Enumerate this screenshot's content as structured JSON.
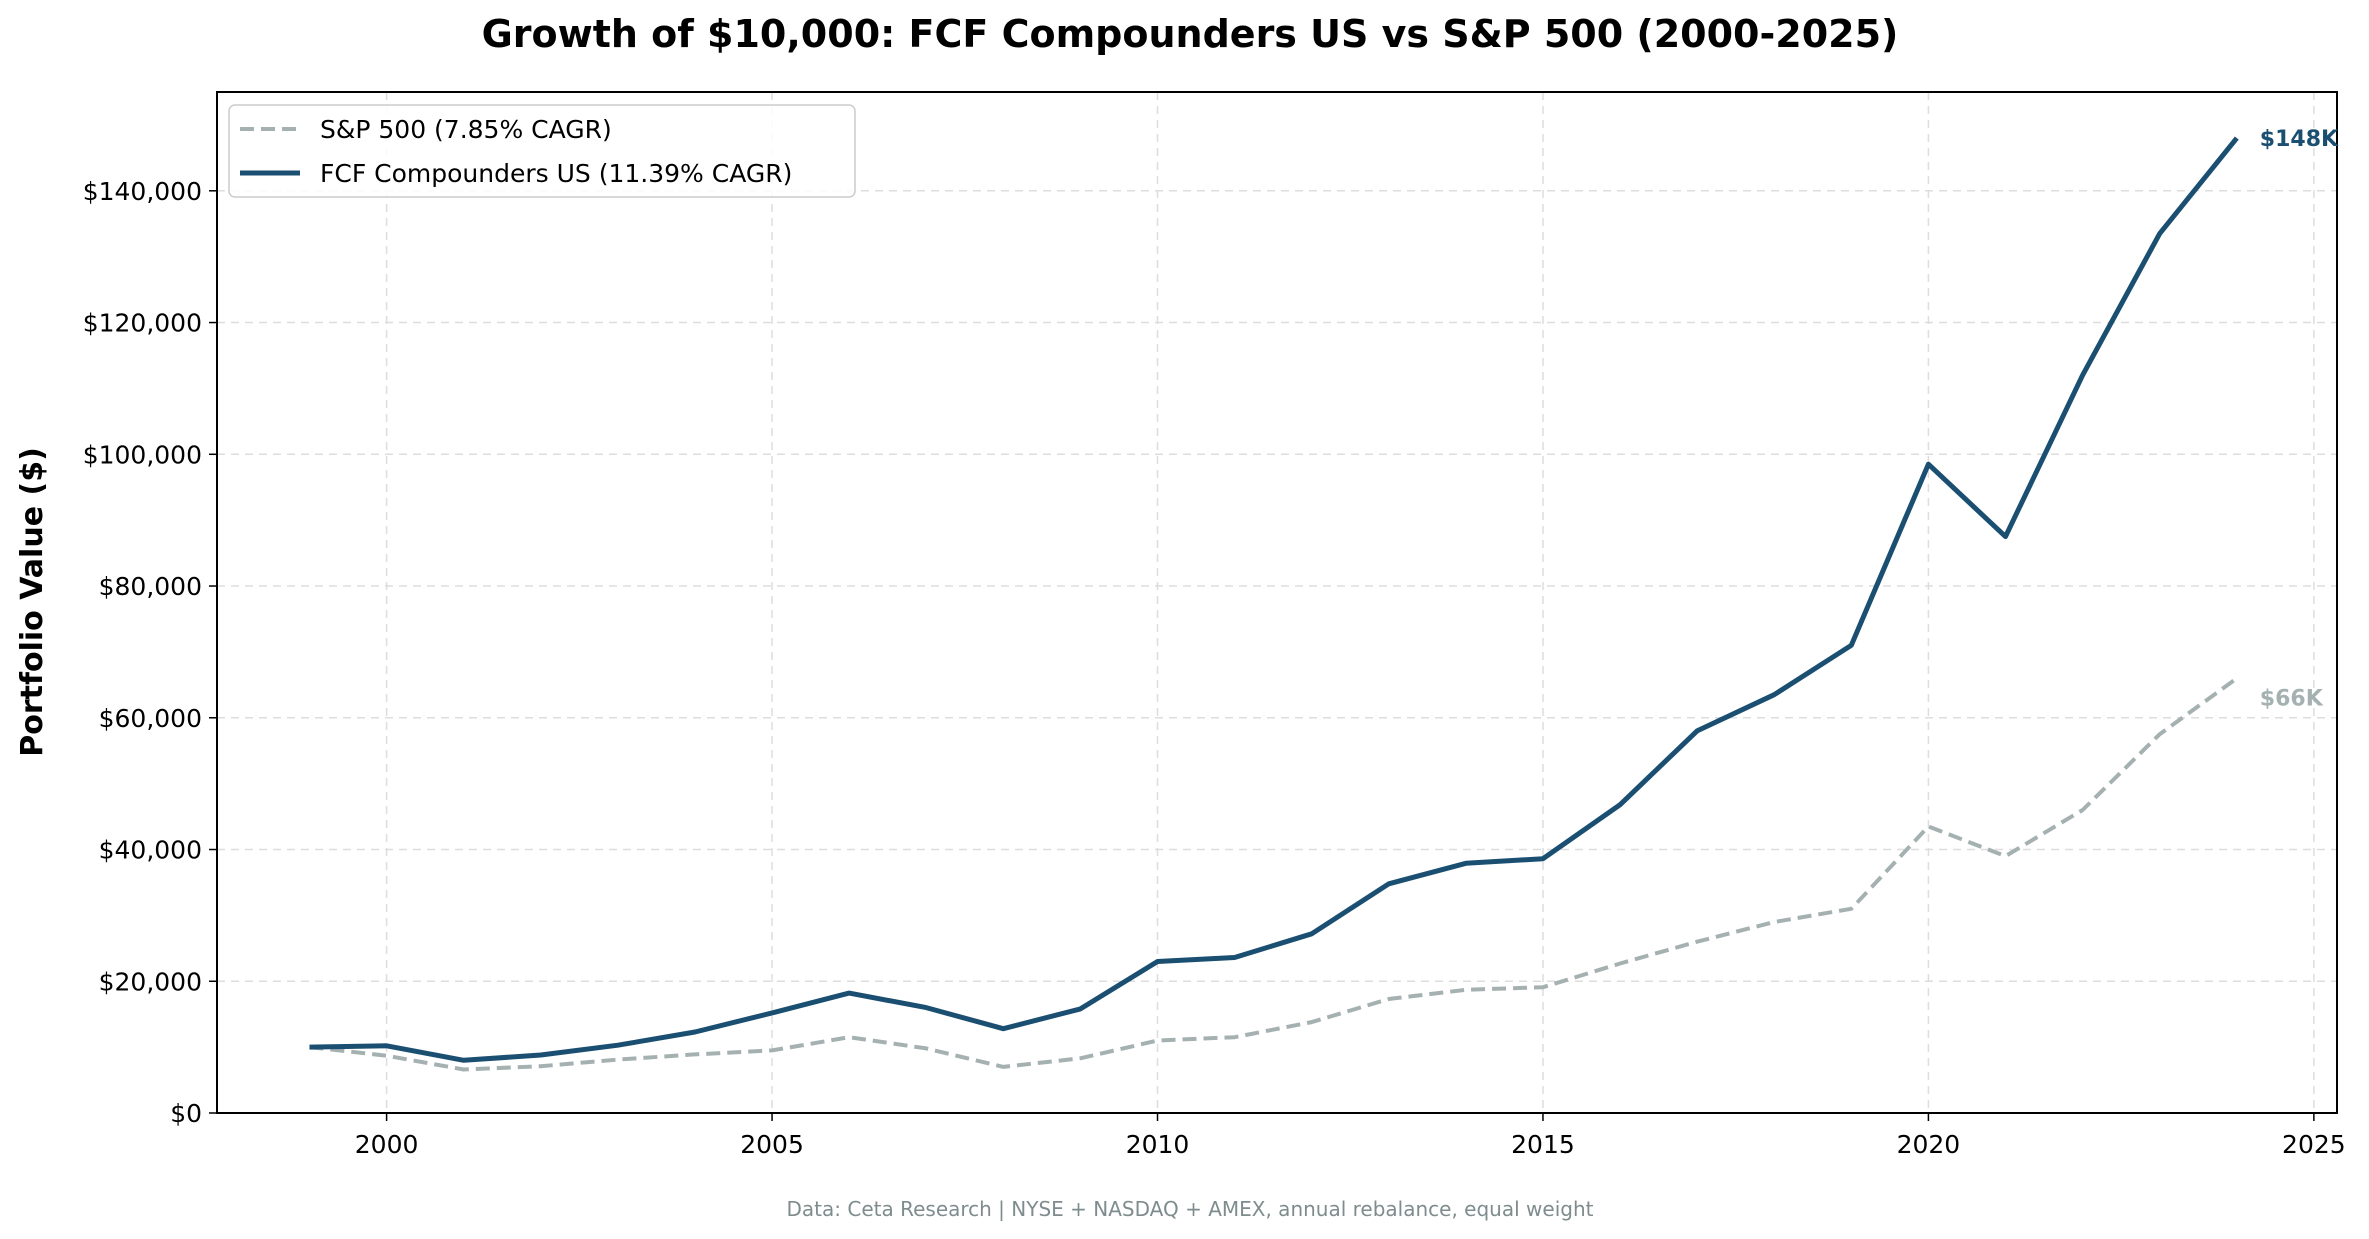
{
  "chart_data": {
    "type": "line",
    "title": "Growth of $10,000: FCF Compounders US vs S&P 500 (2000-2025)",
    "xlabel": "",
    "ylabel": "Portfolio Value ($)",
    "footer": "Data: Ceta Research | NYSE + NASDAQ + AMEX, annual rebalance, equal weight",
    "xlim": [
      1997.8,
      2025.3
    ],
    "ylim": [
      0,
      155000
    ],
    "x_ticks": [
      2000,
      2005,
      2010,
      2015,
      2020,
      2025
    ],
    "y_ticks": [
      0,
      20000,
      40000,
      60000,
      80000,
      100000,
      120000,
      140000
    ],
    "y_tick_labels": [
      "$0",
      "$20,000",
      "$40,000",
      "$60,000",
      "$80,000",
      "$100,000",
      "$120,000",
      "$140,000"
    ],
    "grid": true,
    "legend_position": "top-left",
    "x": [
      1999,
      2000,
      2001,
      2002,
      2003,
      2004,
      2005,
      2006,
      2007,
      2008,
      2009,
      2010,
      2011,
      2012,
      2013,
      2014,
      2015,
      2016,
      2017,
      2018,
      2019,
      2020,
      2021,
      2022,
      2023,
      2024
    ],
    "series": [
      {
        "name": "S&P 500 (7.85% CAGR)",
        "color": "#a5b1b1",
        "style": "dashed",
        "end_label": "$66K",
        "values": [
          10000,
          8700,
          6600,
          7100,
          8100,
          8900,
          9500,
          11500,
          9800,
          7000,
          8300,
          11000,
          11500,
          13800,
          17300,
          18700,
          19100,
          22700,
          26000,
          29000,
          31000,
          43500,
          39000,
          46000,
          57500,
          66000
        ]
      },
      {
        "name": "FCF Compounders US (11.39% CAGR)",
        "color": "#1b4f72",
        "style": "solid",
        "end_label": "$148K",
        "values": [
          10000,
          10200,
          8000,
          8800,
          10300,
          12300,
          15200,
          18200,
          16000,
          12800,
          15800,
          23000,
          23600,
          27200,
          34800,
          37900,
          38600,
          46800,
          58000,
          63500,
          71000,
          98500,
          87500,
          112000,
          133500,
          148000
        ]
      }
    ]
  }
}
